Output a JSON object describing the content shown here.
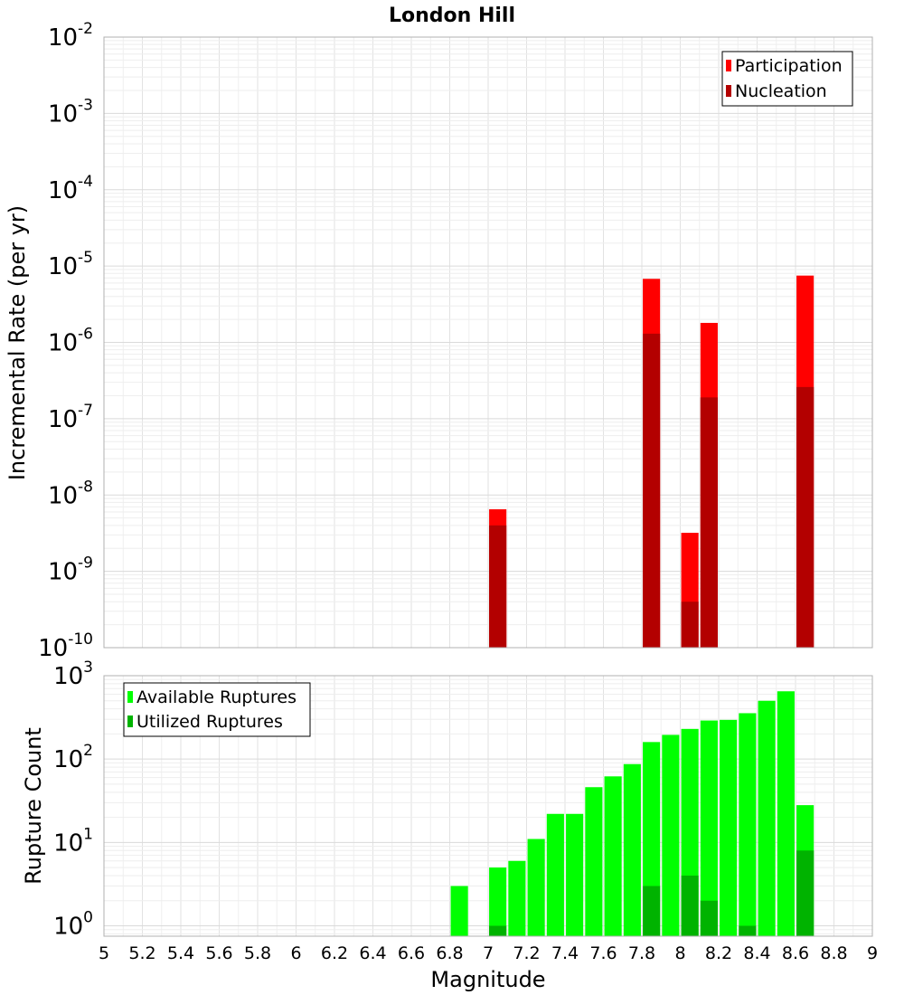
{
  "chart_data": [
    {
      "type": "bar",
      "title": "London Hill",
      "ylabel": "Incremental Rate (per yr)",
      "xlabel": "",
      "x_range": [
        5,
        9
      ],
      "y_scale": "log",
      "ylim": [
        1e-10,
        0.01
      ],
      "grid": true,
      "legend_position": "top-right",
      "bar_width": 0.09,
      "y_ticks": [
        {
          "base": "10",
          "exp": "-10",
          "value": 1e-10
        },
        {
          "base": "10",
          "exp": "-9",
          "value": 1e-09
        },
        {
          "base": "10",
          "exp": "-8",
          "value": 1e-08
        },
        {
          "base": "10",
          "exp": "-7",
          "value": 1e-07
        },
        {
          "base": "10",
          "exp": "-6",
          "value": 1e-06
        },
        {
          "base": "10",
          "exp": "-5",
          "value": 1e-05
        },
        {
          "base": "10",
          "exp": "-4",
          "value": 0.0001
        },
        {
          "base": "10",
          "exp": "-3",
          "value": 0.001
        },
        {
          "base": "10",
          "exp": "-2",
          "value": 0.01
        }
      ],
      "series": [
        {
          "name": "Participation",
          "color": "#ff0000",
          "x": [
            7.05,
            7.85,
            8.05,
            8.15,
            8.65
          ],
          "values": [
            6.5e-09,
            6.8e-06,
            3.2e-09,
            1.8e-06,
            7.5e-06
          ]
        },
        {
          "name": "Nucleation",
          "color": "#b30000",
          "x": [
            7.05,
            7.85,
            8.05,
            8.15,
            8.65
          ],
          "values": [
            4e-09,
            1.3e-06,
            4e-10,
            1.9e-07,
            2.6e-07
          ]
        }
      ]
    },
    {
      "type": "bar",
      "title": "",
      "ylabel": "Rupture Count",
      "xlabel": "Magnitude",
      "x_range": [
        5,
        9
      ],
      "y_scale": "log",
      "ylim": [
        0.75,
        1000
      ],
      "grid": true,
      "legend_position": "top-left",
      "bar_width": 0.09,
      "y_ticks": [
        {
          "base": "10",
          "exp": "0",
          "value": 1
        },
        {
          "base": "10",
          "exp": "1",
          "value": 10
        },
        {
          "base": "10",
          "exp": "2",
          "value": 100
        },
        {
          "base": "10",
          "exp": "3",
          "value": 1000
        }
      ],
      "x_ticks": [
        "5",
        "5.2",
        "5.4",
        "5.6",
        "5.8",
        "6",
        "6.2",
        "6.4",
        "6.6",
        "6.8",
        "7",
        "7.2",
        "7.4",
        "7.6",
        "7.8",
        "8",
        "8.2",
        "8.4",
        "8.6",
        "8.8",
        "9"
      ],
      "series": [
        {
          "name": "Available Ruptures",
          "color": "#00ff00",
          "x": [
            6.85,
            7.05,
            7.15,
            7.25,
            7.35,
            7.45,
            7.55,
            7.65,
            7.75,
            7.85,
            7.95,
            8.05,
            8.15,
            8.25,
            8.35,
            8.45,
            8.55,
            8.65
          ],
          "values": [
            3,
            5,
            6,
            11,
            22,
            22,
            46,
            62,
            87,
            160,
            195,
            230,
            290,
            295,
            355,
            500,
            650,
            28
          ]
        },
        {
          "name": "Utilized Ruptures",
          "color": "#00b300",
          "x": [
            7.05,
            7.85,
            8.05,
            8.15,
            8.35,
            8.65
          ],
          "values": [
            1,
            3,
            4,
            2,
            1,
            8
          ]
        }
      ]
    }
  ]
}
